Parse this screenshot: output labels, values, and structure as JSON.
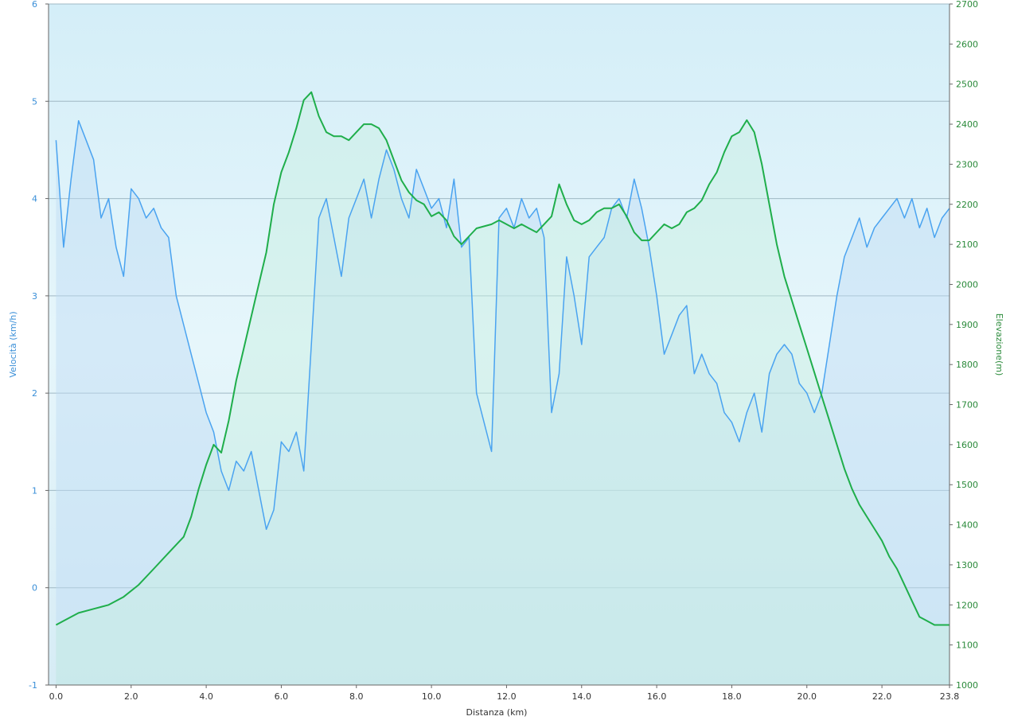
{
  "chart_data": {
    "type": "line",
    "xlabel": "Distanza  (km)",
    "ylabel_left": "Velocità (km/h)",
    "ylabel_right": "Elevazione(m)",
    "x_ticks": [
      "0.0",
      "2.0",
      "4.0",
      "6.0",
      "8.0",
      "10.0",
      "12.0",
      "14.0",
      "16.0",
      "18.0",
      "20.0",
      "22.0",
      "23.8"
    ],
    "x_tick_values": [
      0,
      2,
      4,
      6,
      8,
      10,
      12,
      14,
      16,
      18,
      20,
      22,
      23.8
    ],
    "xlim": [
      -0.2,
      23.8
    ],
    "y_left_ticks": [
      "6",
      "5",
      "4",
      "3",
      "2",
      "1",
      "0",
      "-1"
    ],
    "y_left_values": [
      6,
      5,
      4,
      3,
      2,
      1,
      0,
      -1
    ],
    "ylim_left": [
      -1,
      6
    ],
    "y_right_ticks": [
      "2700",
      "2600",
      "2500",
      "2400",
      "2300",
      "2200",
      "2100",
      "2000",
      "1900",
      "1800",
      "1700",
      "1600",
      "1500",
      "1400",
      "1300",
      "1200",
      "1100",
      "1000"
    ],
    "y_right_values": [
      2700,
      2600,
      2500,
      2400,
      2300,
      2200,
      2100,
      2000,
      1900,
      1800,
      1700,
      1600,
      1500,
      1400,
      1300,
      1200,
      1100,
      1000
    ],
    "ylim_right": [
      1000,
      2700
    ],
    "grid": "horizontal",
    "series": [
      {
        "name": "Velocità",
        "axis": "left",
        "color": "#4aa3f0",
        "x": [
          0.0,
          0.2,
          0.4,
          0.6,
          0.8,
          1.0,
          1.2,
          1.4,
          1.6,
          1.8,
          2.0,
          2.2,
          2.4,
          2.6,
          2.8,
          3.0,
          3.2,
          3.4,
          3.6,
          3.8,
          4.0,
          4.2,
          4.4,
          4.6,
          4.8,
          5.0,
          5.2,
          5.4,
          5.6,
          5.8,
          6.0,
          6.2,
          6.4,
          6.6,
          6.8,
          7.0,
          7.2,
          7.4,
          7.6,
          7.8,
          8.0,
          8.2,
          8.4,
          8.6,
          8.8,
          9.0,
          9.2,
          9.4,
          9.6,
          9.8,
          10.0,
          10.2,
          10.4,
          10.6,
          10.8,
          11.0,
          11.2,
          11.6,
          11.8,
          12.0,
          12.2,
          12.4,
          12.6,
          12.8,
          13.0,
          13.2,
          13.4,
          13.6,
          13.8,
          14.0,
          14.2,
          14.4,
          14.6,
          14.8,
          15.0,
          15.2,
          15.4,
          15.6,
          15.8,
          16.0,
          16.2,
          16.4,
          16.6,
          16.8,
          17.0,
          17.2,
          17.4,
          17.6,
          17.8,
          18.0,
          18.2,
          18.4,
          18.6,
          18.8,
          19.0,
          19.2,
          19.4,
          19.6,
          19.8,
          20.0,
          20.2,
          20.4,
          20.6,
          20.8,
          21.0,
          21.2,
          21.4,
          21.6,
          21.8,
          22.0,
          22.2,
          22.4,
          22.6,
          22.8,
          23.0,
          23.2,
          23.4,
          23.6,
          23.8
        ],
        "values": [
          4.6,
          3.5,
          4.2,
          4.8,
          4.6,
          4.4,
          3.8,
          4.0,
          3.5,
          3.2,
          4.1,
          4.0,
          3.8,
          3.9,
          3.7,
          3.6,
          3.0,
          2.7,
          2.4,
          2.1,
          1.8,
          1.6,
          1.2,
          1.0,
          1.3,
          1.2,
          1.4,
          1.0,
          0.6,
          0.8,
          1.5,
          1.4,
          1.6,
          1.2,
          2.5,
          3.8,
          4.0,
          3.6,
          3.2,
          3.8,
          4.0,
          4.2,
          3.8,
          4.2,
          4.5,
          4.3,
          4.0,
          3.8,
          4.3,
          4.1,
          3.9,
          4.0,
          3.7,
          4.2,
          3.5,
          3.6,
          2.0,
          1.4,
          3.8,
          3.9,
          3.7,
          4.0,
          3.8,
          3.9,
          3.6,
          1.8,
          2.2,
          3.4,
          3.0,
          2.5,
          3.4,
          3.5,
          3.6,
          3.9,
          4.0,
          3.8,
          4.2,
          3.9,
          3.5,
          3.0,
          2.4,
          2.6,
          2.8,
          2.9,
          2.2,
          2.4,
          2.2,
          2.1,
          1.8,
          1.7,
          1.5,
          1.8,
          2.0,
          1.6,
          2.2,
          2.4,
          2.5,
          2.4,
          2.1,
          2.0,
          1.8,
          2.0,
          2.5,
          3.0,
          3.4,
          3.6,
          3.8,
          3.5,
          3.7,
          3.8,
          3.9,
          4.0,
          3.8,
          4.0,
          3.7,
          3.9,
          3.6,
          3.8,
          3.9
        ]
      },
      {
        "name": "Elevazione",
        "axis": "right",
        "color": "#1fae4b",
        "x": [
          0.0,
          0.2,
          0.6,
          1.0,
          1.4,
          1.8,
          2.2,
          2.6,
          3.0,
          3.4,
          3.6,
          3.8,
          4.0,
          4.2,
          4.4,
          4.6,
          4.8,
          5.0,
          5.2,
          5.4,
          5.6,
          5.8,
          6.0,
          6.2,
          6.4,
          6.6,
          6.8,
          7.0,
          7.2,
          7.4,
          7.6,
          7.8,
          8.0,
          8.2,
          8.4,
          8.6,
          8.8,
          9.0,
          9.2,
          9.4,
          9.6,
          9.8,
          10.0,
          10.2,
          10.4,
          10.6,
          10.8,
          11.0,
          11.2,
          11.6,
          11.8,
          12.0,
          12.2,
          12.4,
          12.6,
          12.8,
          13.0,
          13.2,
          13.4,
          13.6,
          13.8,
          14.0,
          14.2,
          14.4,
          14.6,
          14.8,
          15.0,
          15.2,
          15.4,
          15.6,
          15.8,
          16.0,
          16.2,
          16.4,
          16.6,
          16.8,
          17.0,
          17.2,
          17.4,
          17.6,
          17.8,
          18.0,
          18.2,
          18.4,
          18.6,
          18.8,
          19.0,
          19.2,
          19.4,
          19.6,
          19.8,
          20.0,
          20.2,
          20.4,
          20.6,
          20.8,
          21.0,
          21.2,
          21.4,
          21.6,
          21.8,
          22.0,
          22.2,
          22.4,
          22.6,
          22.8,
          23.0,
          23.2,
          23.4,
          23.6,
          23.8
        ],
        "values": [
          1150,
          1160,
          1180,
          1190,
          1200,
          1220,
          1250,
          1290,
          1330,
          1370,
          1420,
          1490,
          1550,
          1600,
          1580,
          1660,
          1760,
          1840,
          1920,
          2000,
          2080,
          2200,
          2280,
          2330,
          2390,
          2460,
          2480,
          2420,
          2380,
          2370,
          2370,
          2360,
          2380,
          2400,
          2400,
          2390,
          2360,
          2310,
          2260,
          2230,
          2210,
          2200,
          2170,
          2180,
          2160,
          2120,
          2100,
          2120,
          2140,
          2150,
          2160,
          2150,
          2140,
          2150,
          2140,
          2130,
          2150,
          2170,
          2250,
          2200,
          2160,
          2150,
          2160,
          2180,
          2190,
          2190,
          2200,
          2170,
          2130,
          2110,
          2110,
          2130,
          2150,
          2140,
          2150,
          2180,
          2190,
          2210,
          2250,
          2280,
          2330,
          2370,
          2380,
          2410,
          2380,
          2300,
          2200,
          2100,
          2020,
          1960,
          1900,
          1840,
          1780,
          1720,
          1660,
          1600,
          1540,
          1490,
          1450,
          1420,
          1390,
          1360,
          1320,
          1290,
          1250,
          1210,
          1170,
          1160,
          1150,
          1150,
          1150
        ]
      }
    ]
  }
}
